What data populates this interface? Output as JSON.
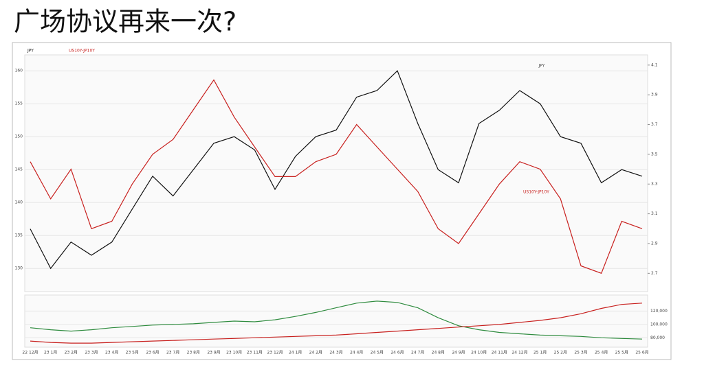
{
  "title": "广场协议再来一次?",
  "chart_data": [
    {
      "type": "line",
      "annotations": [
        "JPY",
        "US10Y-JP10Y"
      ],
      "categories": [
        "22 12月",
        "23 1月",
        "23 2月",
        "23 3月",
        "23 4月",
        "23 5月",
        "23 6月",
        "23 7月",
        "23 8月",
        "23 9月",
        "23 10月",
        "23 11月",
        "23 12月",
        "24 1月",
        "24 2月",
        "24 3月",
        "24 4月",
        "24 5月",
        "24 6月",
        "24 7月",
        "24 8月",
        "24 9月",
        "24 10月",
        "24 11月",
        "24 12月",
        "25 1月",
        "25 2月",
        "25 3月",
        "25 4月",
        "25 5月",
        "25 6月"
      ],
      "series": [
        {
          "name": "JPY",
          "color": "#111111",
          "values": [
            136,
            130,
            134,
            132,
            134,
            139,
            144,
            141,
            145,
            149,
            150,
            148,
            142,
            147,
            150,
            151,
            156,
            157,
            160,
            152,
            145,
            143,
            152,
            154,
            157,
            155,
            150,
            149,
            143,
            145,
            144
          ]
        },
        {
          "name": "US10Y-JP10Y",
          "color": "#c8201e",
          "axis": "y2",
          "values": [
            3.45,
            3.2,
            3.4,
            3.0,
            3.05,
            3.3,
            3.5,
            3.6,
            3.8,
            4.0,
            3.75,
            3.55,
            3.35,
            3.35,
            3.45,
            3.5,
            3.7,
            3.55,
            3.4,
            3.25,
            3.0,
            2.9,
            3.1,
            3.3,
            3.45,
            3.4,
            3.2,
            2.75,
            2.7,
            3.05,
            3.0
          ]
        }
      ],
      "ylim": [
        127,
        162
      ],
      "yticks": [
        130,
        135,
        140,
        145,
        150,
        155,
        160
      ],
      "y2lim": [
        2.6,
        4.15
      ],
      "y2ticks": [
        2.7,
        2.9,
        3.1,
        3.3,
        3.5,
        3.7,
        3.9,
        4.1
      ]
    },
    {
      "type": "line",
      "series": [
        {
          "color": "#2e8b3e",
          "values": [
            95,
            92,
            90,
            92,
            95,
            97,
            99,
            100,
            101,
            103,
            105,
            104,
            107,
            112,
            118,
            125,
            132,
            135,
            133,
            125,
            110,
            98,
            92,
            88,
            86,
            84,
            83,
            82,
            80,
            79,
            78
          ]
        },
        {
          "color": "#c8201e",
          "values": [
            75,
            73,
            72,
            72,
            73,
            74,
            75,
            76,
            77,
            78,
            79,
            80,
            81,
            82,
            83,
            84,
            86,
            88,
            90,
            92,
            94,
            96,
            98,
            100,
            103,
            106,
            110,
            116,
            124,
            130,
            132
          ]
        }
      ],
      "ylim": [
        70,
        140
      ],
      "yticks": [
        {
          "value": 80,
          "label": "80,000"
        },
        {
          "value": 100,
          "label": "100,000"
        },
        {
          "value": 120,
          "label": "120,000"
        }
      ]
    }
  ]
}
